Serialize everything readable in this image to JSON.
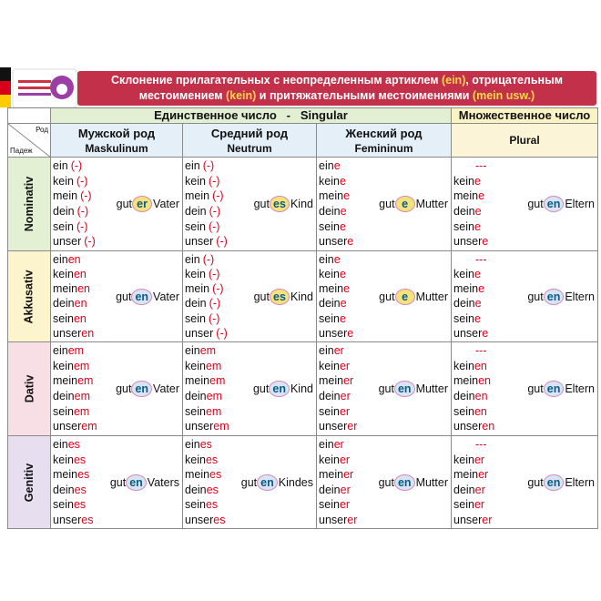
{
  "title": [
    {
      "text": "Склонение прилагательных с неопределенным артиклем "
    },
    {
      "text": "(ein)",
      "highlight": true
    },
    {
      "text": ", отрицательным местоимением "
    },
    {
      "text": "(kein)",
      "highlight": true
    },
    {
      "text": " и притяжательными местоимениями "
    },
    {
      "text": "(mein usw.)",
      "highlight": true
    }
  ],
  "corner": {
    "top": "Род",
    "bottom": "Падеж"
  },
  "singular_header": "Единственное число   -   Singular",
  "plural_header": "Множественное число",
  "genders": [
    {
      "ru": "Мужской род",
      "de": "Maskulinum"
    },
    {
      "ru": "Средний род",
      "de": "Neutrum"
    },
    {
      "ru": "Женский род",
      "de": "Femininum"
    },
    {
      "de": "Plural"
    }
  ],
  "cases": [
    {
      "name": "Nominativ",
      "cells": [
        {
          "forms": [
            {
              "stem": "ein",
              "end": "(-)"
            },
            {
              "stem": "kein",
              "end": "(-)"
            },
            {
              "stem": "mein",
              "end": "(-)"
            },
            {
              "stem": "dein",
              "end": "(-)"
            },
            {
              "stem": "sein",
              "end": "(-)"
            },
            {
              "stem": "unser",
              "end": "(-)"
            }
          ],
          "adjective": {
            "stem": "gut",
            "end": "er",
            "color": "#f6e27a"
          },
          "noun": "Vater"
        },
        {
          "forms": [
            {
              "stem": "ein",
              "end": "(-)"
            },
            {
              "stem": "kein",
              "end": "(-)"
            },
            {
              "stem": "mein",
              "end": "(-)"
            },
            {
              "stem": "dein",
              "end": "(-)"
            },
            {
              "stem": "sein",
              "end": "(-)"
            },
            {
              "stem": "unser",
              "end": "(-)"
            }
          ],
          "adjective": {
            "stem": "gut",
            "end": "es",
            "color": "#f6e27a"
          },
          "noun": "Kind"
        },
        {
          "forms": [
            {
              "stem": "ein",
              "end": "e"
            },
            {
              "stem": "kein",
              "end": "e"
            },
            {
              "stem": "mein",
              "end": "e"
            },
            {
              "stem": "dein",
              "end": "e"
            },
            {
              "stem": "sein",
              "end": "e"
            },
            {
              "stem": "unser",
              "end": "e"
            }
          ],
          "adjective": {
            "stem": "gut",
            "end": "e",
            "color": "#f6e27a"
          },
          "noun": "Mutter"
        },
        {
          "forms": [
            {
              "end": "---"
            },
            {
              "stem": "kein",
              "end": "e"
            },
            {
              "stem": "mein",
              "end": "e"
            },
            {
              "stem": "dein",
              "end": "e"
            },
            {
              "stem": "sein",
              "end": "e"
            },
            {
              "stem": "unser",
              "end": "e"
            }
          ],
          "adjective": {
            "stem": "gut",
            "end": "en",
            "color": "#d6e4f4"
          },
          "noun": "Eltern"
        }
      ]
    },
    {
      "name": "Akkusativ",
      "cells": [
        {
          "forms": [
            {
              "stem": "ein",
              "end": "en"
            },
            {
              "stem": "kein",
              "end": "en"
            },
            {
              "stem": "mein",
              "end": "en"
            },
            {
              "stem": "dein",
              "end": "en"
            },
            {
              "stem": "sein",
              "end": "en"
            },
            {
              "stem": "unser",
              "end": "en"
            }
          ],
          "adjective": {
            "stem": "gut",
            "end": "en",
            "color": "#d6e4f4"
          },
          "noun": "Vater"
        },
        {
          "forms": [
            {
              "stem": "ein",
              "end": "(-)"
            },
            {
              "stem": "kein",
              "end": "(-)"
            },
            {
              "stem": "mein",
              "end": "(-)"
            },
            {
              "stem": "dein",
              "end": "(-)"
            },
            {
              "stem": "sein",
              "end": "(-)"
            },
            {
              "stem": "unser",
              "end": "(-)"
            }
          ],
          "adjective": {
            "stem": "gut",
            "end": "es",
            "color": "#f6e27a"
          },
          "noun": "Kind"
        },
        {
          "forms": [
            {
              "stem": "ein",
              "end": "e"
            },
            {
              "stem": "kein",
              "end": "e"
            },
            {
              "stem": "mein",
              "end": "e"
            },
            {
              "stem": "dein",
              "end": "e"
            },
            {
              "stem": "sein",
              "end": "e"
            },
            {
              "stem": "unser",
              "end": "e"
            }
          ],
          "adjective": {
            "stem": "gut",
            "end": "e",
            "color": "#f6e27a"
          },
          "noun": "Mutter"
        },
        {
          "forms": [
            {
              "end": "---"
            },
            {
              "stem": "kein",
              "end": "e"
            },
            {
              "stem": "mein",
              "end": "e"
            },
            {
              "stem": "dein",
              "end": "e"
            },
            {
              "stem": "sein",
              "end": "e"
            },
            {
              "stem": "unser",
              "end": "e"
            }
          ],
          "adjective": {
            "stem": "gut",
            "end": "en",
            "color": "#d6e4f4"
          },
          "noun": "Eltern"
        }
      ]
    },
    {
      "name": "Dativ",
      "cells": [
        {
          "forms": [
            {
              "stem": "ein",
              "end": "em"
            },
            {
              "stem": "kein",
              "end": "em"
            },
            {
              "stem": "mein",
              "end": "em"
            },
            {
              "stem": "dein",
              "end": "em"
            },
            {
              "stem": "sein",
              "end": "em"
            },
            {
              "stem": "unser",
              "end": "em"
            }
          ],
          "adjective": {
            "stem": "gut",
            "end": "en",
            "color": "#d6e4f4"
          },
          "noun": "Vater"
        },
        {
          "forms": [
            {
              "stem": "ein",
              "end": "em"
            },
            {
              "stem": "kein",
              "end": "em"
            },
            {
              "stem": "mein",
              "end": "em"
            },
            {
              "stem": "dein",
              "end": "em"
            },
            {
              "stem": "sein",
              "end": "em"
            },
            {
              "stem": "unser",
              "end": "em"
            }
          ],
          "adjective": {
            "stem": "gut",
            "end": "en",
            "color": "#d6e4f4"
          },
          "noun": "Kind"
        },
        {
          "forms": [
            {
              "stem": "ein",
              "end": "er"
            },
            {
              "stem": "kein",
              "end": "er"
            },
            {
              "stem": "mein",
              "end": "er"
            },
            {
              "stem": "dein",
              "end": "er"
            },
            {
              "stem": "sein",
              "end": "er"
            },
            {
              "stem": "unser",
              "end": "er"
            }
          ],
          "adjective": {
            "stem": "gut",
            "end": "en",
            "color": "#d6e4f4"
          },
          "noun": "Mutter"
        },
        {
          "forms": [
            {
              "end": "---"
            },
            {
              "stem": "kein",
              "end": "en"
            },
            {
              "stem": "mein",
              "end": "en"
            },
            {
              "stem": "dein",
              "end": "en"
            },
            {
              "stem": "sein",
              "end": "en"
            },
            {
              "stem": "unser",
              "end": "en"
            }
          ],
          "adjective": {
            "stem": "gut",
            "end": "en",
            "color": "#d6e4f4"
          },
          "noun": "Eltern"
        }
      ]
    },
    {
      "name": "Genitiv",
      "cells": [
        {
          "forms": [
            {
              "stem": "ein",
              "end": "es"
            },
            {
              "stem": "kein",
              "end": "es"
            },
            {
              "stem": "mein",
              "end": "es"
            },
            {
              "stem": "dein",
              "end": "es"
            },
            {
              "stem": "sein",
              "end": "es"
            },
            {
              "stem": "unser",
              "end": "es"
            }
          ],
          "adjective": {
            "stem": "gut",
            "end": "en",
            "color": "#d6e4f4"
          },
          "noun": "Vaters"
        },
        {
          "forms": [
            {
              "stem": "ein",
              "end": "es"
            },
            {
              "stem": "kein",
              "end": "es"
            },
            {
              "stem": "mein",
              "end": "es"
            },
            {
              "stem": "dein",
              "end": "es"
            },
            {
              "stem": "sein",
              "end": "es"
            },
            {
              "stem": "unser",
              "end": "es"
            }
          ],
          "adjective": {
            "stem": "gut",
            "end": "en",
            "color": "#d6e4f4"
          },
          "noun": "Kindes"
        },
        {
          "forms": [
            {
              "stem": "ein",
              "end": "er"
            },
            {
              "stem": "kein",
              "end": "er"
            },
            {
              "stem": "mein",
              "end": "er"
            },
            {
              "stem": "dein",
              "end": "er"
            },
            {
              "stem": "sein",
              "end": "er"
            },
            {
              "stem": "unser",
              "end": "er"
            }
          ],
          "adjective": {
            "stem": "gut",
            "end": "en",
            "color": "#d6e4f4"
          },
          "noun": "Mutter"
        },
        {
          "forms": [
            {
              "end": "---"
            },
            {
              "stem": "kein",
              "end": "er"
            },
            {
              "stem": "mein",
              "end": "er"
            },
            {
              "stem": "dein",
              "end": "er"
            },
            {
              "stem": "sein",
              "end": "er"
            },
            {
              "stem": "unser",
              "end": "er"
            }
          ],
          "adjective": {
            "stem": "gut",
            "end": "en",
            "color": "#d6e4f4"
          },
          "noun": "Eltern"
        }
      ]
    }
  ]
}
